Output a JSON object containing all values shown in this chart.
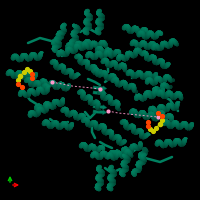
{
  "background_color": "#000000",
  "figure_size": [
    2.0,
    2.0
  ],
  "dpi": 100,
  "protein_color": "#008060",
  "protein_highlight": "#00A878",
  "protein_shadow": "#005040",
  "ligand_yellow": "#DDCC00",
  "ligand_red": "#FF3300",
  "ligand_blue": "#0066FF",
  "ligand_orange": "#FF8800",
  "pink_color": "#FF99CC",
  "axis_x_color": "#FF0000",
  "axis_y_color": "#00CC00"
}
